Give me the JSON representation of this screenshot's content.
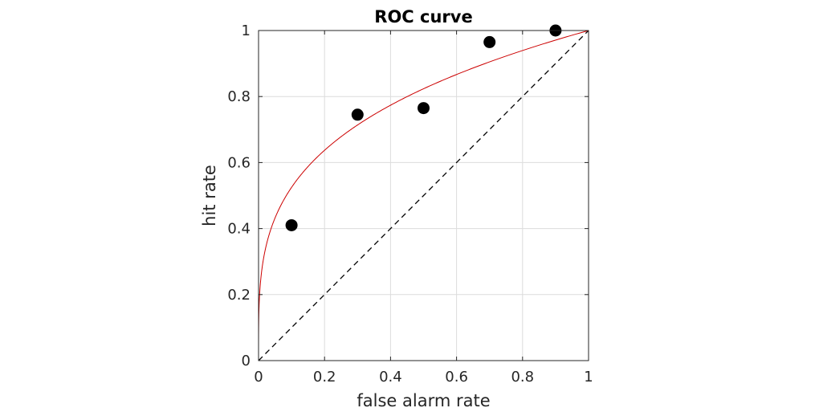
{
  "chart_data": {
    "type": "scatter",
    "title": "ROC curve",
    "xlabel": "false alarm rate",
    "ylabel": "hit rate",
    "xlim": [
      0,
      1
    ],
    "ylim": [
      0,
      1
    ],
    "xticks": [
      0,
      0.2,
      0.4,
      0.6,
      0.8,
      1
    ],
    "yticks": [
      0,
      0.2,
      0.4,
      0.6,
      0.8,
      1
    ],
    "xtick_labels": [
      "0",
      "0.2",
      "0.4",
      "0.6",
      "0.8",
      "1"
    ],
    "ytick_labels": [
      "0",
      "0.2",
      "0.4",
      "0.6",
      "0.8",
      "1"
    ],
    "grid": true,
    "legend": "none",
    "points": [
      {
        "x": 0.1,
        "y": 0.41
      },
      {
        "x": 0.3,
        "y": 0.745
      },
      {
        "x": 0.5,
        "y": 0.765
      },
      {
        "x": 0.7,
        "y": 0.965
      },
      {
        "x": 0.9,
        "y": 1.0
      }
    ],
    "fitted_curve": {
      "type": "power",
      "exponent": 0.28
    },
    "chance_line": [
      [
        0,
        0
      ],
      [
        1,
        1
      ]
    ],
    "colors": {
      "points": "#000000",
      "fitted_curve": "#cc0000",
      "chance_line": "#000000",
      "grid": "#dcdcdc",
      "axes": "#262626"
    }
  }
}
